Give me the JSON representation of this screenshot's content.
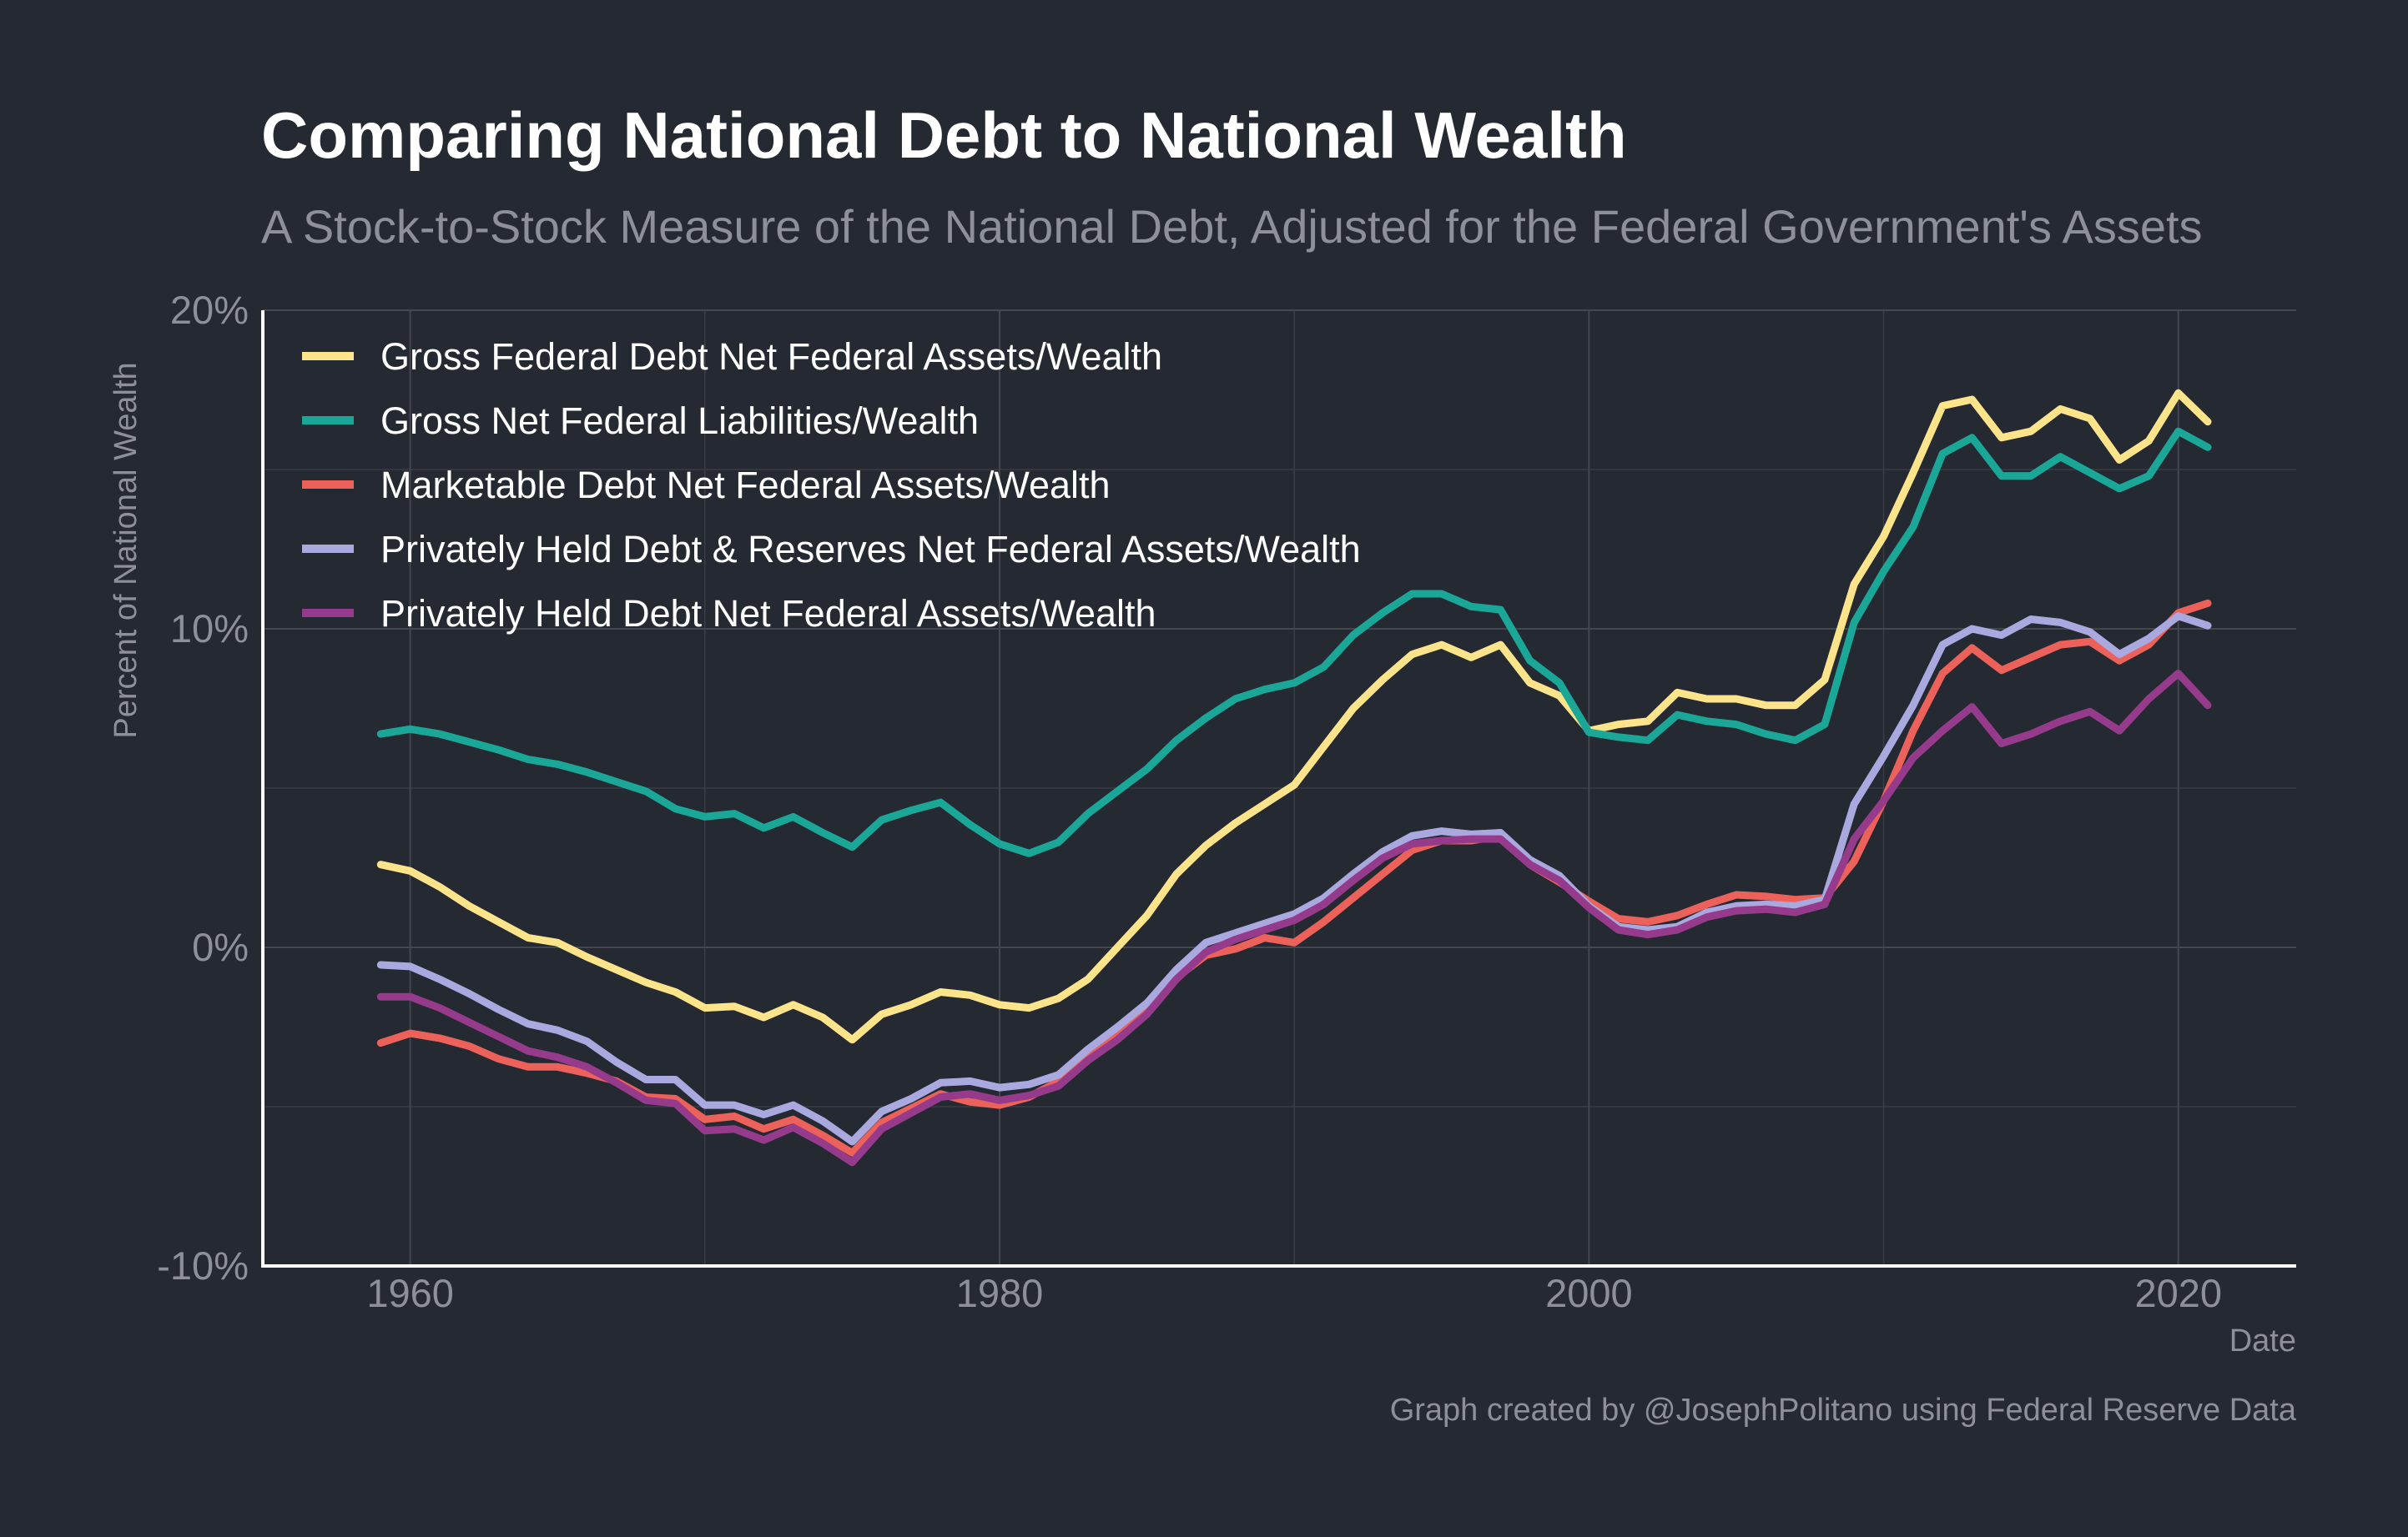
{
  "chart_data": {
    "type": "line",
    "title": "Comparing National Debt to National Wealth",
    "subtitle": "A Stock-to-Stock Measure of the National Debt, Adjusted for the Federal Government's Assets",
    "xlabel": "Date",
    "ylabel": "Percent of National Wealth",
    "caption": "Graph created by @JosephPolitano using Federal Reserve Data",
    "xlim": [
      1955,
      2024
    ],
    "ylim": [
      -10,
      20
    ],
    "x_ticks": [
      1960,
      1980,
      2000,
      2020
    ],
    "y_ticks": [
      -10,
      0,
      10,
      20
    ],
    "y_tick_labels": [
      "-10%",
      "0%",
      "10%",
      "20%"
    ],
    "grid": true,
    "legend_position": "top-left",
    "x": [
      1959,
      1960,
      1961,
      1962,
      1963,
      1964,
      1965,
      1966,
      1967,
      1968,
      1969,
      1970,
      1971,
      1972,
      1973,
      1974,
      1975,
      1976,
      1977,
      1978,
      1979,
      1980,
      1981,
      1982,
      1983,
      1984,
      1985,
      1986,
      1987,
      1988,
      1989,
      1990,
      1991,
      1992,
      1993,
      1994,
      1995,
      1996,
      1997,
      1998,
      1999,
      2000,
      2001,
      2002,
      2003,
      2004,
      2005,
      2006,
      2007,
      2008,
      2009,
      2010,
      2011,
      2012,
      2013,
      2014,
      2015,
      2016,
      2017,
      2018,
      2019,
      2020,
      2021
    ],
    "series": [
      {
        "name": "Gross Federal Debt Net Federal Assets/Wealth",
        "color": "#fde48a",
        "values": [
          2.6,
          2.4,
          1.9,
          1.3,
          0.8,
          0.3,
          0.15,
          -0.3,
          -0.7,
          -1.1,
          -1.4,
          -1.9,
          -1.85,
          -2.2,
          -1.8,
          -2.2,
          -2.9,
          -2.1,
          -1.8,
          -1.4,
          -1.5,
          -1.8,
          -1.9,
          -1.6,
          -1.0,
          0.0,
          1.0,
          2.3,
          3.2,
          3.9,
          4.5,
          5.1,
          6.3,
          7.5,
          8.4,
          9.2,
          9.5,
          9.1,
          9.5,
          8.3,
          7.9,
          6.8,
          7.0,
          7.1,
          8.0,
          7.8,
          7.8,
          7.6,
          7.6,
          8.4,
          11.4,
          12.9,
          14.9,
          17.0,
          17.2,
          16.0,
          16.2,
          16.9,
          16.6,
          15.3,
          15.9,
          17.4,
          16.5
        ]
      },
      {
        "name": "Gross Net Federal Liabilities/Wealth",
        "color": "#1aa797",
        "values": [
          6.7,
          6.85,
          6.7,
          6.45,
          6.2,
          5.9,
          5.75,
          5.5,
          5.2,
          4.9,
          4.35,
          4.1,
          4.2,
          3.75,
          4.1,
          3.6,
          3.15,
          4.0,
          4.3,
          4.55,
          3.85,
          3.25,
          2.95,
          3.3,
          4.2,
          4.9,
          5.6,
          6.5,
          7.2,
          7.8,
          8.1,
          8.3,
          8.8,
          9.8,
          10.5,
          11.1,
          11.1,
          10.7,
          10.6,
          9.0,
          8.3,
          6.75,
          6.6,
          6.5,
          7.3,
          7.1,
          7.0,
          6.7,
          6.5,
          7.0,
          10.2,
          11.8,
          13.2,
          15.5,
          16.0,
          14.8,
          14.8,
          15.4,
          14.9,
          14.4,
          14.8,
          16.2,
          15.7
        ]
      },
      {
        "name": "Marketable Debt Net Federal Assets/Wealth",
        "color": "#ec6159",
        "values": [
          -3.0,
          -2.7,
          -2.85,
          -3.1,
          -3.5,
          -3.75,
          -3.75,
          -3.95,
          -4.2,
          -4.7,
          -4.75,
          -5.4,
          -5.3,
          -5.7,
          -5.4,
          -5.9,
          -6.45,
          -5.5,
          -5.05,
          -4.6,
          -4.85,
          -4.95,
          -4.7,
          -4.2,
          -3.4,
          -2.7,
          -1.85,
          -0.95,
          -0.25,
          -0.05,
          0.3,
          0.15,
          0.8,
          1.55,
          2.3,
          3.05,
          3.35,
          3.35,
          3.5,
          2.6,
          2.05,
          1.45,
          0.9,
          0.8,
          1.0,
          1.35,
          1.65,
          1.6,
          1.5,
          1.55,
          2.7,
          4.6,
          6.8,
          8.6,
          9.4,
          8.7,
          9.1,
          9.5,
          9.6,
          9.0,
          9.5,
          10.5,
          10.8
        ]
      },
      {
        "name": "Privately Held Debt & Reserves Net Federal Assets/Wealth",
        "color": "#a9a9df",
        "values": [
          -0.55,
          -0.6,
          -1.0,
          -1.45,
          -1.95,
          -2.4,
          -2.6,
          -2.95,
          -3.6,
          -4.15,
          -4.15,
          -4.95,
          -4.95,
          -5.25,
          -4.95,
          -5.45,
          -6.1,
          -5.15,
          -4.75,
          -4.25,
          -4.2,
          -4.4,
          -4.3,
          -4.0,
          -3.2,
          -2.5,
          -1.75,
          -0.7,
          0.15,
          0.45,
          0.75,
          1.05,
          1.55,
          2.3,
          3.0,
          3.5,
          3.65,
          3.55,
          3.6,
          2.75,
          2.25,
          1.3,
          0.65,
          0.55,
          0.65,
          1.1,
          1.3,
          1.35,
          1.3,
          1.5,
          4.5,
          6.0,
          7.6,
          9.5,
          10.0,
          9.8,
          10.3,
          10.2,
          9.9,
          9.2,
          9.7,
          10.4,
          10.1
        ]
      },
      {
        "name": "Privately Held Debt Net Federal Assets/Wealth",
        "color": "#963a8c",
        "values": [
          -1.55,
          -1.55,
          -1.9,
          -2.35,
          -2.8,
          -3.25,
          -3.45,
          -3.75,
          -4.25,
          -4.8,
          -4.9,
          -5.75,
          -5.7,
          -6.05,
          -5.65,
          -6.15,
          -6.75,
          -5.7,
          -5.2,
          -4.7,
          -4.6,
          -4.8,
          -4.65,
          -4.35,
          -3.55,
          -2.9,
          -2.1,
          -1.0,
          -0.15,
          0.25,
          0.55,
          0.85,
          1.35,
          2.1,
          2.8,
          3.25,
          3.35,
          3.4,
          3.4,
          2.6,
          2.1,
          1.25,
          0.55,
          0.4,
          0.55,
          0.95,
          1.15,
          1.2,
          1.1,
          1.35,
          3.4,
          4.6,
          5.95,
          6.8,
          7.55,
          6.4,
          6.7,
          7.1,
          7.4,
          6.8,
          7.8,
          8.6,
          7.6
        ]
      }
    ]
  }
}
